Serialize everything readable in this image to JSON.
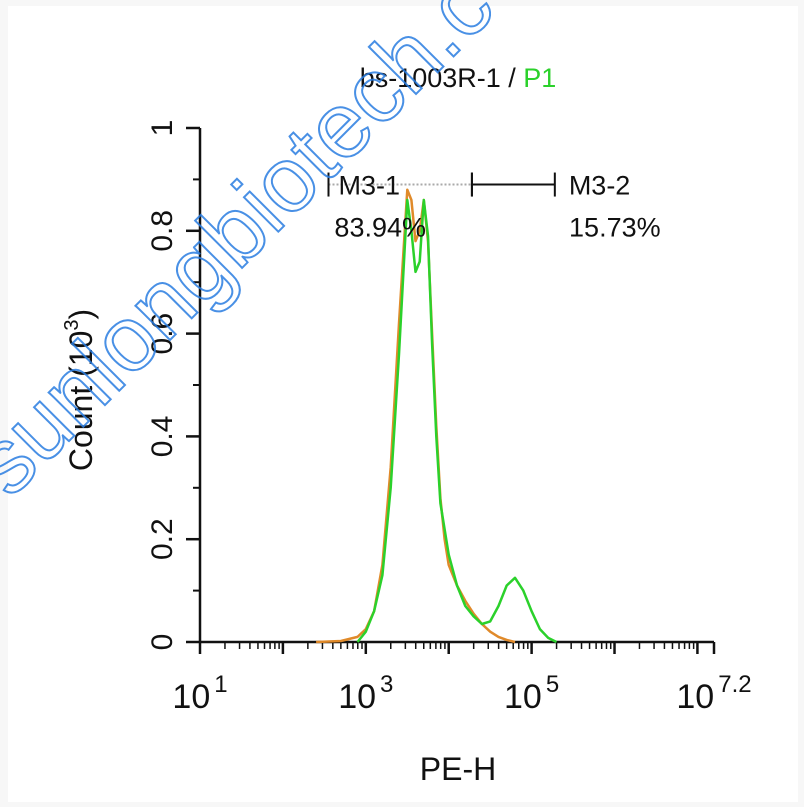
{
  "chart_data": {
    "type": "line",
    "title": {
      "sample": "bs-1003R-1",
      "separator": " / ",
      "gate": "P1",
      "gate_color": "#2bd12b"
    },
    "xlabel": "PE-H",
    "ylabel": "Count (10",
    "ylabel_exp": "3",
    "ylabel_close": ")",
    "x_scale": "log",
    "xlim": [
      1,
      7.2
    ],
    "ylim": [
      0,
      1
    ],
    "x_ticks": [
      {
        "base": "10",
        "exp": "1",
        "value": 1
      },
      {
        "base": "10",
        "exp": "3",
        "value": 3
      },
      {
        "base": "10",
        "exp": "5",
        "value": 5
      },
      {
        "base": "10",
        "exp": "7.2",
        "value": 7.2
      }
    ],
    "y_ticks": [
      "0",
      "0.2",
      "0.4",
      "0.6",
      "0.8",
      "1"
    ],
    "y_tick_values": [
      0,
      0.2,
      0.4,
      0.6,
      0.8,
      1
    ],
    "series": [
      {
        "color": "#e08a2a",
        "x_log10": [
          2.4,
          2.7,
          2.9,
          3.0,
          3.1,
          3.2,
          3.3,
          3.4,
          3.5,
          3.55,
          3.6,
          3.65,
          3.7,
          3.75,
          3.8,
          3.85,
          3.9,
          3.95,
          4.0,
          4.1,
          4.2,
          4.3,
          4.4,
          4.5,
          4.6,
          4.7,
          4.8
        ],
        "y": [
          0,
          0.002,
          0.01,
          0.025,
          0.06,
          0.15,
          0.34,
          0.62,
          0.88,
          0.86,
          0.78,
          0.8,
          0.86,
          0.78,
          0.6,
          0.42,
          0.28,
          0.2,
          0.15,
          0.11,
          0.08,
          0.055,
          0.035,
          0.02,
          0.01,
          0.004,
          0
        ]
      },
      {
        "color": "#2bd12b",
        "x_log10": [
          2.9,
          3.0,
          3.1,
          3.2,
          3.3,
          3.4,
          3.5,
          3.55,
          3.6,
          3.65,
          3.7,
          3.75,
          3.8,
          3.85,
          3.9,
          4.0,
          4.1,
          4.2,
          4.3,
          4.4,
          4.5,
          4.6,
          4.7,
          4.8,
          4.9,
          5.0,
          5.1,
          5.2,
          5.3
        ],
        "y": [
          0,
          0.02,
          0.06,
          0.13,
          0.3,
          0.56,
          0.86,
          0.8,
          0.72,
          0.74,
          0.86,
          0.79,
          0.58,
          0.4,
          0.27,
          0.17,
          0.11,
          0.07,
          0.05,
          0.035,
          0.04,
          0.07,
          0.11,
          0.125,
          0.1,
          0.06,
          0.025,
          0.008,
          0
        ]
      }
    ],
    "markers": [
      {
        "label": "M3-1",
        "percent": "83.94%",
        "x_start_log10": 2.55,
        "x_end_log10": 4.28,
        "y": 0.89,
        "style": "dotted"
      },
      {
        "label": "M3-2",
        "percent": "15.73%",
        "x_start_log10": 4.28,
        "x_end_log10": 5.28,
        "y": 0.89,
        "style": "solid"
      }
    ]
  },
  "watermark": {
    "text": "sunlongbiotech.c",
    "color": "#2a7de1"
  }
}
